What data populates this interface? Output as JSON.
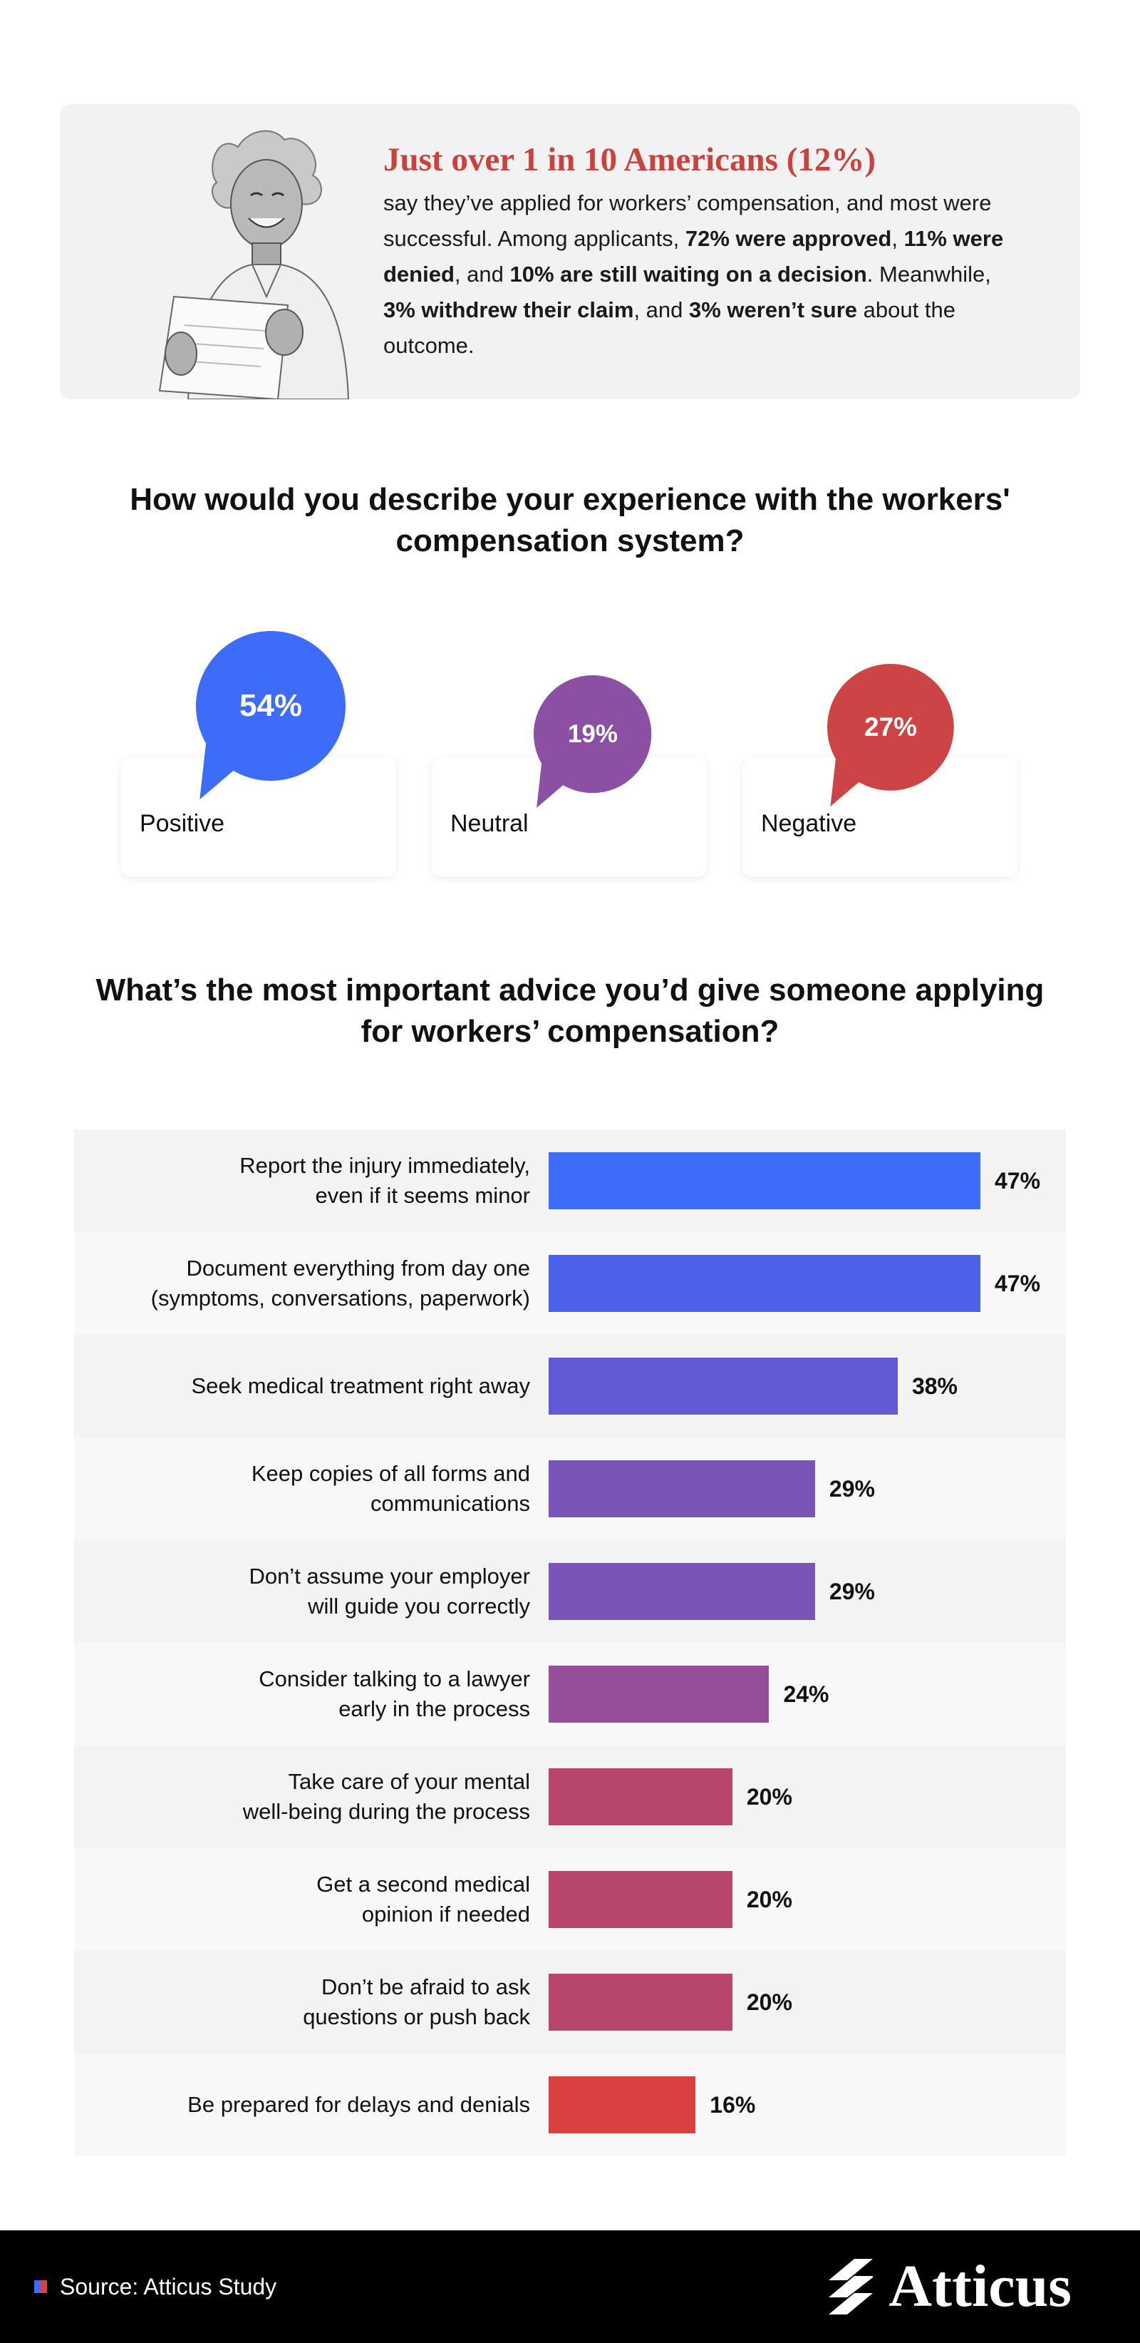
{
  "intro": {
    "headline": "Just over 1 in 10 Americans (12%)",
    "body": [
      {
        "t": "say they’ve applied for workers’ compensation, and most were successful. Among applicants, ",
        "b": false
      },
      {
        "t": "72% were approved",
        "b": true
      },
      {
        "t": ", ",
        "b": false
      },
      {
        "t": "11% were denied",
        "b": true
      },
      {
        "t": ", and ",
        "b": false
      },
      {
        "t": "10% are still waiting on a decision",
        "b": true
      },
      {
        "t": ". Meanwhile, ",
        "b": false
      },
      {
        "t": "3% withdrew their claim",
        "b": true
      },
      {
        "t": ", and ",
        "b": false
      },
      {
        "t": "3% weren’t sure",
        "b": true
      },
      {
        "t": " about the outcome.",
        "b": false
      }
    ]
  },
  "experience": {
    "question": "How would you describe your experience with the workers' compensation system?",
    "items": [
      {
        "label": "Positive",
        "value": "54%",
        "color": "#3d6bfa"
      },
      {
        "label": "Neutral",
        "value": "19%",
        "color": "#8b4fa4"
      },
      {
        "label": "Negative",
        "value": "27%",
        "color": "#cc4444"
      }
    ]
  },
  "advice": {
    "question": "What’s the most important advice you’d give someone applying for workers’ compensation?"
  },
  "chart_data": {
    "type": "bar",
    "orientation": "horizontal",
    "title": "What’s the most important advice you’d give someone applying for workers’ compensation?",
    "categories": [
      "Report the injury immediately,\neven if it seems minor",
      "Document everything from day one\n(symptoms, conversations, paperwork)",
      "Seek medical treatment right away",
      "Keep copies of all forms and\ncommunications",
      "Don’t assume your employer\nwill guide you correctly",
      "Consider talking to a lawyer\nearly in the process",
      "Take care of your mental\nwell-being during the process",
      "Get a second medical\nopinion if needed",
      "Don’t be afraid to ask\nquestions or push back",
      "Be prepared for delays and denials"
    ],
    "values": [
      47,
      47,
      38,
      29,
      29,
      24,
      20,
      20,
      20,
      16
    ],
    "value_labels": [
      "47%",
      "47%",
      "38%",
      "29%",
      "29%",
      "24%",
      "20%",
      "20%",
      "20%",
      "16%"
    ],
    "colors": [
      "#3d6bfa",
      "#4a63ea",
      "#6259d4",
      "#7a55b8",
      "#7a55b8",
      "#954e9a",
      "#b8466a",
      "#b8466a",
      "#b8466a",
      "#d94040"
    ],
    "xlim": [
      0,
      47
    ],
    "grid": false,
    "legend": "none"
  },
  "footer": {
    "source": "Source: Atticus Study",
    "brand": "Atticus",
    "source_mark_colors": [
      "#3d6bfa",
      "#d94040"
    ]
  }
}
